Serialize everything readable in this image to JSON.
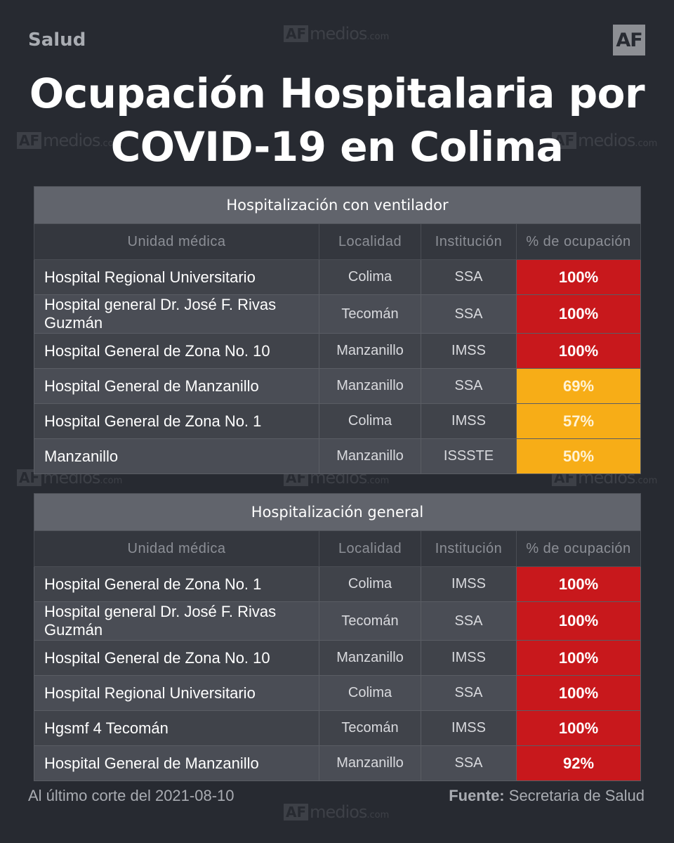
{
  "header": {
    "section": "Salud",
    "logo": "AF",
    "title_line1": "Ocupación Hospitalaria por",
    "title_line2": "COVID-19 en Colima"
  },
  "watermark": {
    "af": "AF",
    "name": "medios",
    "suffix": ".com"
  },
  "columns": [
    "Unidad médica",
    "Localidad",
    "Institución",
    "% de ocupación"
  ],
  "tables": [
    {
      "caption": "Hospitalización con ventilador",
      "rows": [
        {
          "unit": "Hospital Regional Universitario",
          "loc": "Colima",
          "inst": "SSA",
          "pct": "100%",
          "level": "red"
        },
        {
          "unit": "Hospital general Dr. José F. Rivas Guzmán",
          "loc": "Tecomán",
          "inst": "SSA",
          "pct": "100%",
          "level": "red"
        },
        {
          "unit": "Hospital General de Zona No. 10",
          "loc": "Manzanillo",
          "inst": "IMSS",
          "pct": "100%",
          "level": "red"
        },
        {
          "unit": "Hospital General de Manzanillo",
          "loc": "Manzanillo",
          "inst": "SSA",
          "pct": "69%",
          "level": "amber"
        },
        {
          "unit": "Hospital General de Zona No. 1",
          "loc": "Colima",
          "inst": "IMSS",
          "pct": "57%",
          "level": "amber"
        },
        {
          "unit": "Manzanillo",
          "loc": "Manzanillo",
          "inst": "ISSSTE",
          "pct": "50%",
          "level": "amber"
        }
      ]
    },
    {
      "caption": "Hospitalización general",
      "rows": [
        {
          "unit": "Hospital General de Zona No. 1",
          "loc": "Colima",
          "inst": "IMSS",
          "pct": "100%",
          "level": "red"
        },
        {
          "unit": "Hospital general Dr. José F. Rivas Guzmán",
          "loc": "Tecomán",
          "inst": "SSA",
          "pct": "100%",
          "level": "red"
        },
        {
          "unit": "Hospital General de Zona No. 10",
          "loc": "Manzanillo",
          "inst": "IMSS",
          "pct": "100%",
          "level": "red"
        },
        {
          "unit": "Hospital Regional Universitario",
          "loc": "Colima",
          "inst": "SSA",
          "pct": "100%",
          "level": "red"
        },
        {
          "unit": "Hgsmf 4 Tecomán",
          "loc": "Tecomán",
          "inst": "IMSS",
          "pct": "100%",
          "level": "red"
        },
        {
          "unit": "Hospital General de Manzanillo",
          "loc": "Manzanillo",
          "inst": "SSA",
          "pct": "92%",
          "level": "red"
        }
      ]
    }
  ],
  "footer": {
    "cutoff": "Al último corte del 2021-08-10",
    "source_label": "Fuente:",
    "source": "Secretaria de Salud"
  },
  "colors": {
    "background": "#272a31",
    "high": "#c8181c",
    "medium": "#f7ad17"
  }
}
